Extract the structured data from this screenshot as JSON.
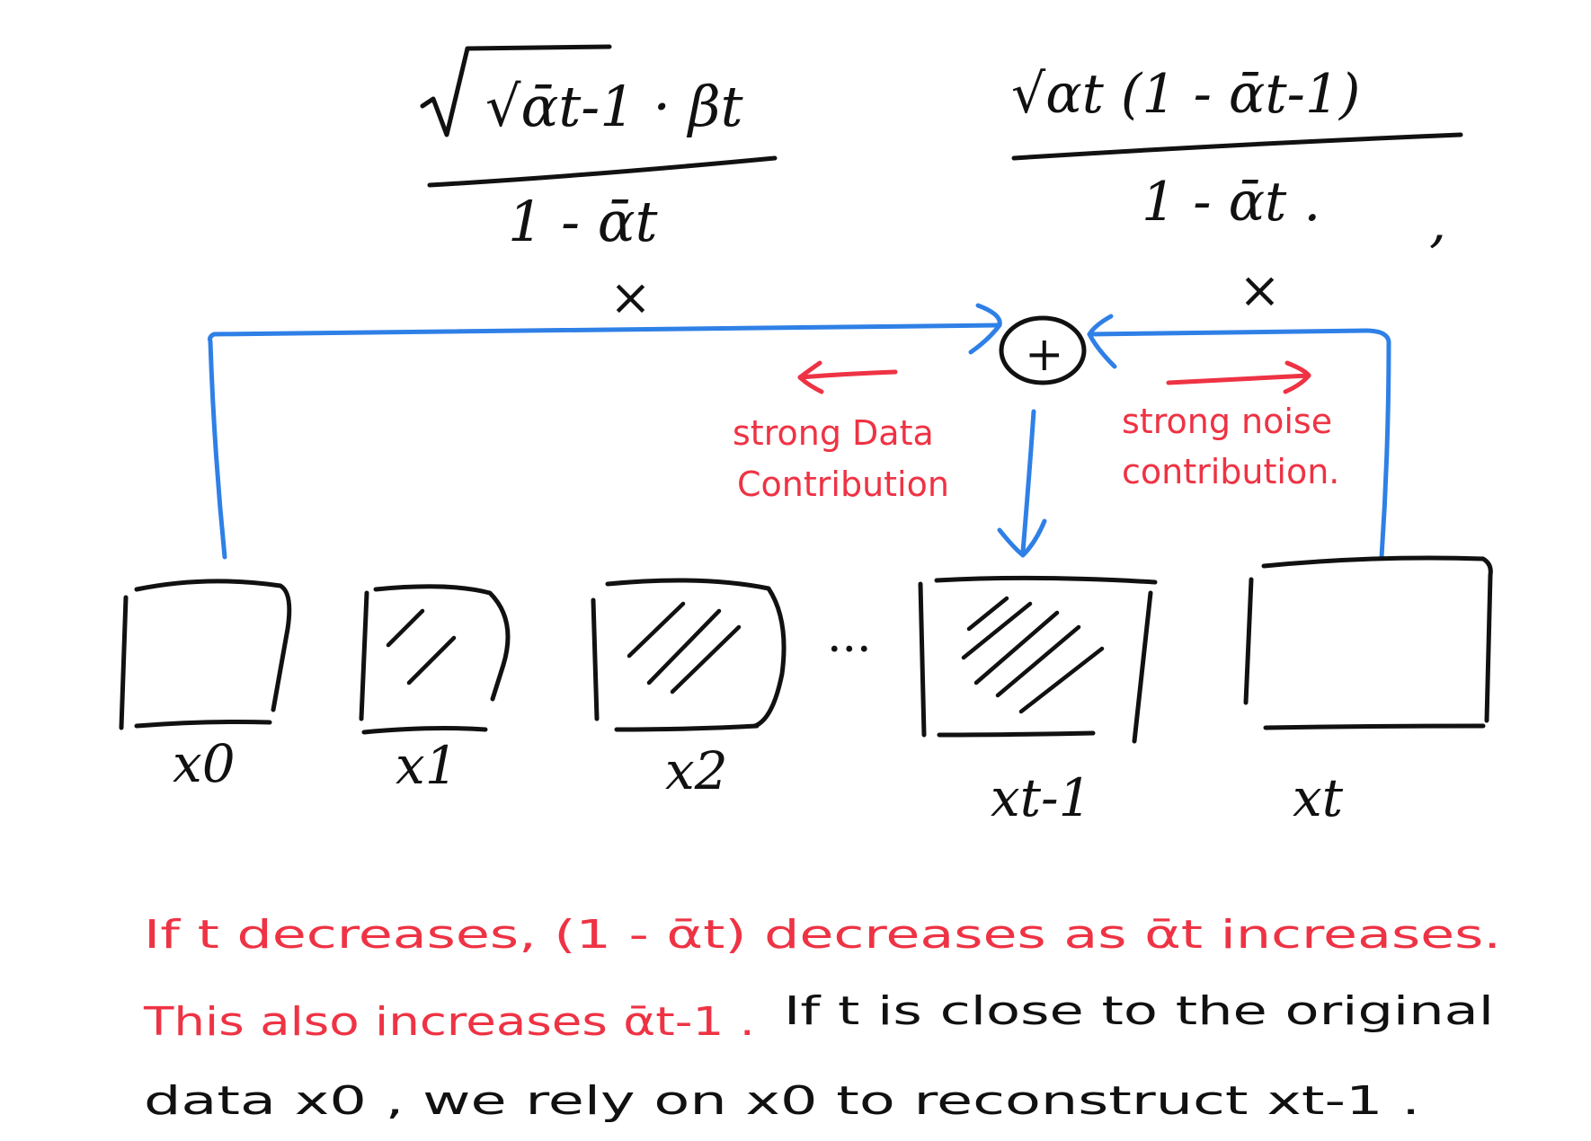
{
  "formulas": {
    "left": {
      "numerator": "√ᾱt-1 · βt",
      "denominator": "1 - ᾱt",
      "multiply": "×"
    },
    "right": {
      "numerator": "√αt (1 - ᾱt-1)",
      "denominator": "1 - ᾱt .",
      "trailing": ",",
      "multiply": "×"
    }
  },
  "sum_node": {
    "symbol": "+"
  },
  "annotations": {
    "data_side": [
      "strong Data",
      "Contribution"
    ],
    "noise_side": [
      "strong noise",
      "contribution."
    ]
  },
  "boxes": [
    {
      "label": "x0",
      "hatch": 0
    },
    {
      "label": "x1",
      "hatch": 2
    },
    {
      "label": "x2",
      "hatch": 3
    },
    {
      "label": "...",
      "hatch": 0
    },
    {
      "label": "xt-1",
      "hatch": 5
    },
    {
      "label": "xt",
      "hatch": 0
    }
  ],
  "note": {
    "line1_red": "If  t  decreases,  (1 - ᾱt)  decreases  as  ᾱt  increases.",
    "line2_red": "This  also  increases  ᾱt-1 .",
    "line2_black": "If  t  is  close  to  the  original",
    "line3_black": "data  x0 ,  we  rely  on  x0  to  reconstruct  xt-1 ."
  },
  "colors": {
    "ink": "#111111",
    "flow": "#2f80e6",
    "highlight": "#ee3344"
  }
}
